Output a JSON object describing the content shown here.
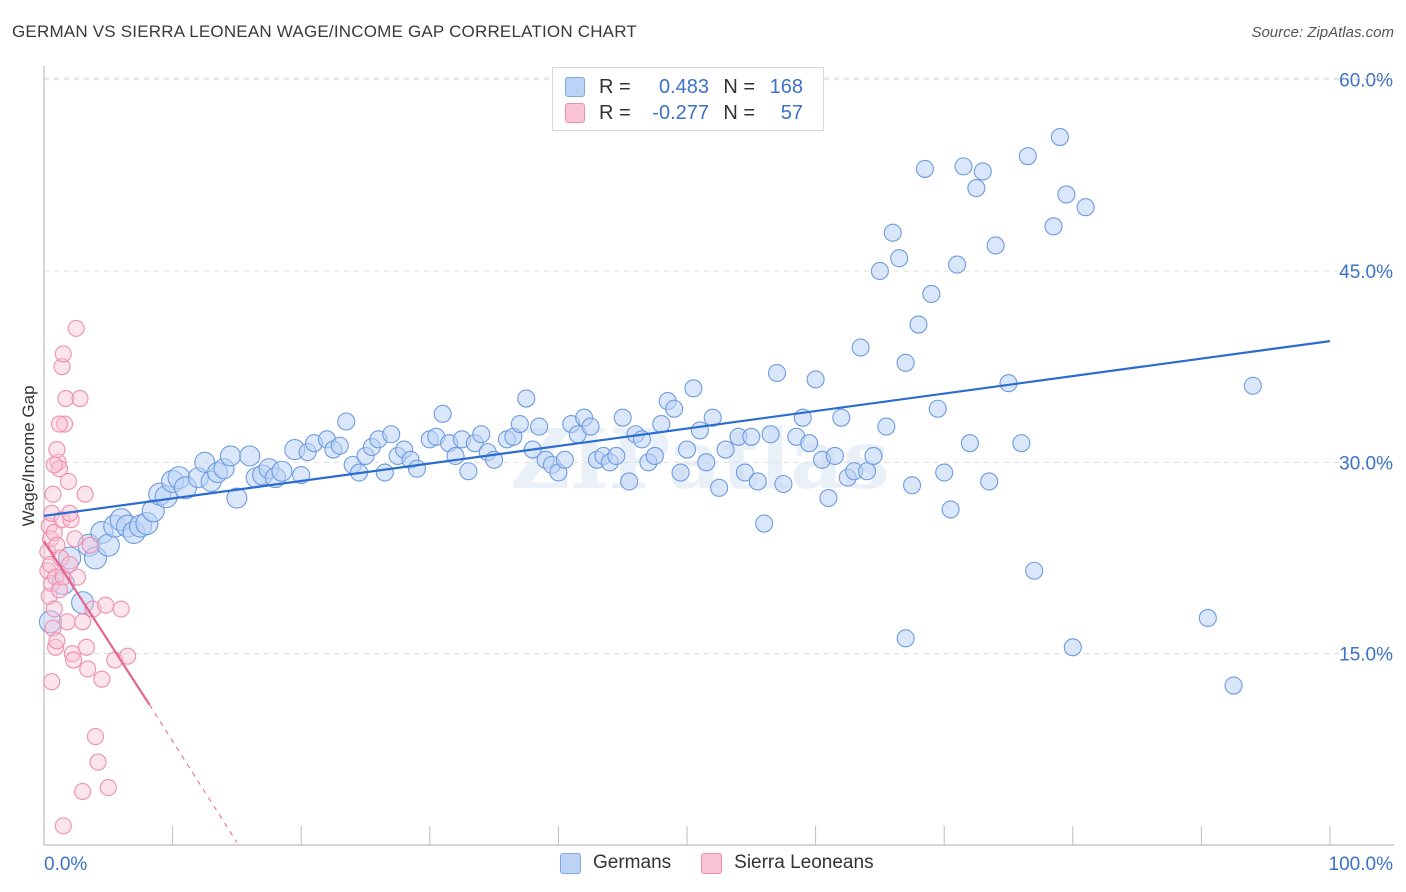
{
  "header": {
    "title": "GERMAN VS SIERRA LEONEAN WAGE/INCOME GAP CORRELATION CHART",
    "source": "Source: ZipAtlas.com"
  },
  "legend": {
    "rows": [
      {
        "r_label": "R =",
        "r_value": "0.483",
        "n_label": "N =",
        "n_value": "168"
      },
      {
        "r_label": "R =",
        "r_value": "-0.277",
        "n_label": "N =",
        "n_value": "57"
      }
    ]
  },
  "bottom_legend": {
    "germans": "Germans",
    "sierra": "Sierra Leoneans"
  },
  "colors": {
    "blue_fill": "#bcd3f5",
    "blue_stroke": "#6e9be0",
    "blue_line": "#2a6cd0",
    "pink_fill": "#f9c4d4",
    "pink_stroke": "#ee8fae",
    "pink_line": "#e8628f",
    "tick_label": "#3b72c8",
    "grid": "#dcdcdc"
  },
  "chart_data": {
    "type": "scatter",
    "title": "GERMAN VS SIERRA LEONEAN WAGE/INCOME GAP CORRELATION CHART",
    "xlabel": "",
    "ylabel": "Wage/Income Gap",
    "xlim": [
      0,
      100
    ],
    "ylim": [
      0,
      63
    ],
    "x_tick_labels": [
      "0.0%",
      "100.0%"
    ],
    "y_ticks": [
      15,
      30,
      45,
      60
    ],
    "y_tick_labels": [
      "15.0%",
      "30.0%",
      "45.0%",
      "60.0%"
    ],
    "grid": true,
    "legend_position": "top-center",
    "watermark": "ZIPatlas",
    "series": [
      {
        "name": "Germans",
        "trend": {
          "x": [
            0,
            100
          ],
          "y": [
            25.8,
            39.5
          ]
        },
        "points": [
          [
            0.5,
            17.5
          ],
          [
            1.5,
            20.5
          ],
          [
            2.0,
            22.5
          ],
          [
            3.0,
            19.0
          ],
          [
            3.5,
            23.5
          ],
          [
            4.0,
            22.5
          ],
          [
            4.5,
            24.5
          ],
          [
            5.0,
            23.5
          ],
          [
            5.5,
            25.0
          ],
          [
            6.0,
            25.5
          ],
          [
            6.5,
            25.0
          ],
          [
            7.0,
            24.5
          ],
          [
            7.5,
            25.0
          ],
          [
            8.0,
            25.2
          ],
          [
            8.5,
            26.2
          ],
          [
            9.0,
            27.5
          ],
          [
            9.5,
            27.3
          ],
          [
            10.0,
            28.5
          ],
          [
            10.5,
            28.8
          ],
          [
            11.0,
            28.0
          ],
          [
            12.0,
            28.8
          ],
          [
            12.5,
            30.0
          ],
          [
            13.0,
            28.5
          ],
          [
            13.5,
            29.2
          ],
          [
            14.0,
            29.5
          ],
          [
            14.5,
            30.5
          ],
          [
            15.0,
            27.2
          ],
          [
            16.0,
            30.5
          ],
          [
            16.5,
            28.8
          ],
          [
            17.0,
            29.0
          ],
          [
            17.5,
            29.5
          ],
          [
            18.0,
            28.8
          ],
          [
            18.5,
            29.3
          ],
          [
            19.5,
            31.0
          ],
          [
            20.0,
            29.0
          ],
          [
            20.5,
            30.8
          ],
          [
            21.0,
            31.5
          ],
          [
            22.0,
            31.8
          ],
          [
            22.5,
            31.0
          ],
          [
            23.0,
            31.3
          ],
          [
            23.5,
            33.2
          ],
          [
            24.0,
            29.8
          ],
          [
            24.5,
            29.2
          ],
          [
            25.0,
            30.5
          ],
          [
            25.5,
            31.2
          ],
          [
            26.0,
            31.8
          ],
          [
            26.5,
            29.2
          ],
          [
            27.0,
            32.2
          ],
          [
            27.5,
            30.5
          ],
          [
            28.0,
            31.0
          ],
          [
            28.5,
            30.2
          ],
          [
            29.0,
            29.5
          ],
          [
            30.0,
            31.8
          ],
          [
            30.5,
            32.0
          ],
          [
            31.0,
            33.8
          ],
          [
            31.5,
            31.5
          ],
          [
            32.0,
            30.5
          ],
          [
            32.5,
            31.8
          ],
          [
            33.0,
            29.3
          ],
          [
            33.5,
            31.5
          ],
          [
            34.0,
            32.2
          ],
          [
            34.5,
            30.8
          ],
          [
            35.0,
            30.2
          ],
          [
            36.0,
            31.8
          ],
          [
            36.5,
            32.0
          ],
          [
            37.0,
            33.0
          ],
          [
            37.5,
            35.0
          ],
          [
            38.0,
            31.0
          ],
          [
            38.5,
            32.8
          ],
          [
            39.0,
            30.2
          ],
          [
            39.5,
            29.8
          ],
          [
            40.0,
            29.2
          ],
          [
            40.5,
            30.2
          ],
          [
            41.0,
            33.0
          ],
          [
            41.5,
            32.2
          ],
          [
            42.0,
            33.5
          ],
          [
            42.5,
            32.8
          ],
          [
            43.0,
            30.2
          ],
          [
            43.5,
            30.5
          ],
          [
            44.0,
            30.0
          ],
          [
            44.5,
            30.5
          ],
          [
            45.0,
            33.5
          ],
          [
            45.5,
            28.5
          ],
          [
            46.0,
            32.2
          ],
          [
            46.5,
            31.8
          ],
          [
            47.0,
            30.0
          ],
          [
            47.5,
            30.5
          ],
          [
            48.0,
            33.0
          ],
          [
            48.5,
            34.8
          ],
          [
            49.0,
            34.2
          ],
          [
            49.5,
            29.2
          ],
          [
            50.0,
            31.0
          ],
          [
            50.5,
            35.8
          ],
          [
            51.0,
            32.5
          ],
          [
            51.5,
            30.0
          ],
          [
            52.0,
            33.5
          ],
          [
            52.5,
            28.0
          ],
          [
            53.0,
            31.0
          ],
          [
            54.0,
            32.0
          ],
          [
            54.5,
            29.2
          ],
          [
            55.0,
            32.0
          ],
          [
            55.5,
            28.5
          ],
          [
            56.0,
            25.2
          ],
          [
            56.5,
            32.2
          ],
          [
            57.0,
            37.0
          ],
          [
            57.5,
            28.3
          ],
          [
            58.5,
            32.0
          ],
          [
            59.0,
            33.5
          ],
          [
            59.5,
            31.5
          ],
          [
            60.0,
            36.5
          ],
          [
            60.5,
            30.2
          ],
          [
            61.0,
            27.2
          ],
          [
            61.5,
            30.5
          ],
          [
            62.0,
            33.5
          ],
          [
            62.5,
            28.8
          ],
          [
            63.0,
            29.3
          ],
          [
            63.5,
            39.0
          ],
          [
            64.0,
            29.3
          ],
          [
            64.5,
            30.5
          ],
          [
            65.0,
            45.0
          ],
          [
            65.5,
            32.8
          ],
          [
            66.0,
            48.0
          ],
          [
            66.5,
            46.0
          ],
          [
            67.0,
            37.8
          ],
          [
            67.5,
            28.2
          ],
          [
            68.0,
            40.8
          ],
          [
            68.5,
            53.0
          ],
          [
            69.0,
            43.2
          ],
          [
            69.5,
            34.2
          ],
          [
            70.0,
            29.2
          ],
          [
            70.5,
            26.3
          ],
          [
            71.0,
            45.5
          ],
          [
            71.5,
            53.2
          ],
          [
            72.0,
            31.5
          ],
          [
            72.5,
            51.5
          ],
          [
            73.0,
            52.8
          ],
          [
            73.5,
            28.5
          ],
          [
            74.0,
            47.0
          ],
          [
            75.0,
            36.2
          ],
          [
            76.0,
            31.5
          ],
          [
            76.5,
            54.0
          ],
          [
            77.0,
            21.5
          ],
          [
            78.5,
            48.5
          ],
          [
            79.0,
            55.5
          ],
          [
            79.5,
            51.0
          ],
          [
            81.0,
            50.0
          ],
          [
            94.0,
            36.0
          ],
          [
            67.0,
            16.2
          ],
          [
            80.0,
            15.5
          ],
          [
            90.5,
            17.8
          ],
          [
            92.5,
            12.5
          ]
        ]
      },
      {
        "name": "Sierra Leoneans",
        "trend": {
          "x": [
            0,
            8.2
          ],
          "y": [
            23.8,
            11.0
          ],
          "dashed_extension": {
            "x": [
              8.2,
              15.0
            ],
            "y": [
              11.0,
              0.2
            ]
          }
        },
        "points": [
          [
            0.3,
            21.5
          ],
          [
            0.3,
            23.0
          ],
          [
            0.4,
            25.0
          ],
          [
            0.4,
            19.5
          ],
          [
            0.5,
            24.0
          ],
          [
            0.5,
            22.0
          ],
          [
            0.6,
            20.5
          ],
          [
            0.6,
            26.0
          ],
          [
            0.7,
            27.5
          ],
          [
            0.7,
            17.0
          ],
          [
            0.8,
            18.5
          ],
          [
            0.8,
            24.5
          ],
          [
            0.9,
            21.0
          ],
          [
            0.9,
            15.5
          ],
          [
            1.0,
            23.5
          ],
          [
            1.0,
            16.0
          ],
          [
            1.1,
            30.0
          ],
          [
            1.2,
            29.5
          ],
          [
            1.2,
            20.0
          ],
          [
            1.3,
            22.5
          ],
          [
            1.4,
            25.5
          ],
          [
            1.4,
            37.5
          ],
          [
            1.5,
            38.5
          ],
          [
            1.5,
            21.0
          ],
          [
            1.6,
            33.0
          ],
          [
            1.7,
            35.0
          ],
          [
            1.8,
            17.5
          ],
          [
            1.9,
            28.5
          ],
          [
            2.0,
            22.0
          ],
          [
            2.1,
            25.5
          ],
          [
            2.2,
            15.0
          ],
          [
            2.3,
            14.5
          ],
          [
            2.4,
            24.0
          ],
          [
            2.5,
            40.5
          ],
          [
            2.6,
            21.0
          ],
          [
            2.8,
            35.0
          ],
          [
            3.0,
            17.5
          ],
          [
            3.2,
            27.5
          ],
          [
            3.3,
            15.5
          ],
          [
            3.4,
            13.8
          ],
          [
            3.6,
            23.5
          ],
          [
            3.8,
            18.5
          ],
          [
            4.0,
            8.5
          ],
          [
            4.2,
            6.5
          ],
          [
            4.5,
            13.0
          ],
          [
            4.8,
            18.8
          ],
          [
            5.0,
            4.5
          ],
          [
            5.5,
            14.5
          ],
          [
            6.0,
            18.5
          ],
          [
            6.5,
            14.8
          ],
          [
            1.0,
            31.0
          ],
          [
            0.8,
            29.8
          ],
          [
            1.5,
            1.5
          ],
          [
            3.0,
            4.2
          ],
          [
            0.6,
            12.8
          ],
          [
            2.0,
            26.0
          ],
          [
            1.2,
            33.0
          ]
        ]
      }
    ]
  }
}
